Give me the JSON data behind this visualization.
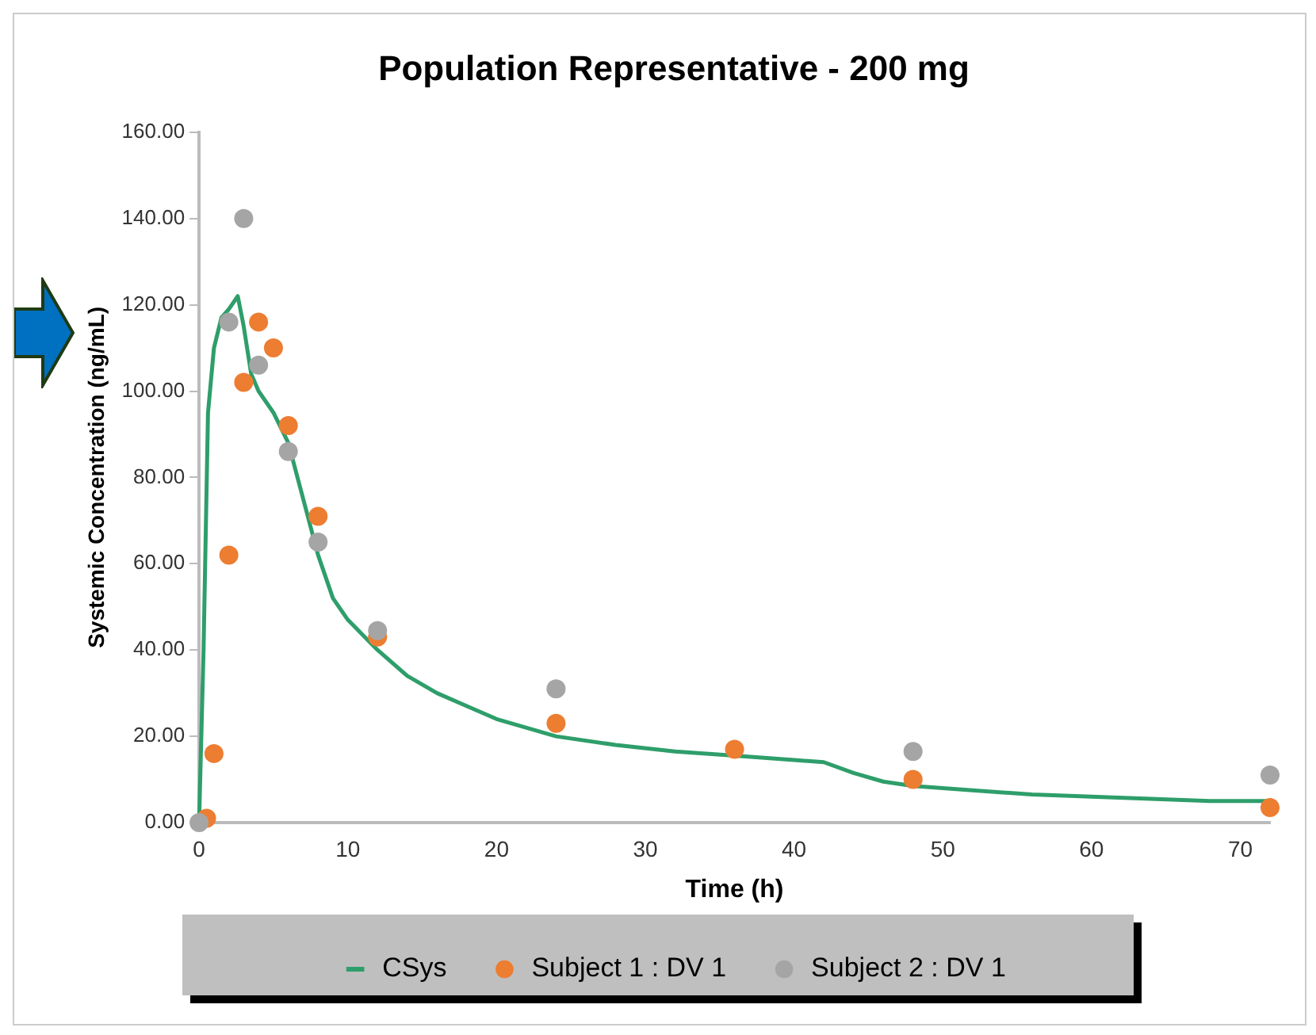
{
  "chart_data": {
    "type": "line",
    "title": "Population Representative - 200 mg",
    "xlabel": "Time (h)",
    "ylabel": "Systemic Concentration (ng/mL)",
    "xlim": [
      0,
      72
    ],
    "xticks": [
      0,
      10,
      20,
      30,
      40,
      50,
      60,
      70
    ],
    "ylim": [
      0,
      160
    ],
    "yticks": [
      {
        "value": 0,
        "label": "0.00"
      },
      {
        "value": 20,
        "label": "20.00"
      },
      {
        "value": 40,
        "label": "40.00"
      },
      {
        "value": 60,
        "label": "60.00"
      },
      {
        "value": 80,
        "label": "80.00"
      },
      {
        "value": 100,
        "label": "100.00"
      },
      {
        "value": 120,
        "label": "120.00"
      },
      {
        "value": 140,
        "label": "140.00"
      },
      {
        "value": 160,
        "label": "160.00"
      }
    ],
    "grid": false,
    "legend": "bottom",
    "series": [
      {
        "name": "CSys",
        "color": "#2e9e6a",
        "marker": "none",
        "line_style": "solid",
        "x": [
          0,
          0.3,
          0.6,
          1,
          1.5,
          2,
          2.6,
          3,
          3.5,
          4,
          5,
          6,
          7,
          8,
          9,
          10,
          12,
          14,
          16,
          18,
          20,
          24,
          28,
          32,
          36,
          40,
          42,
          44,
          46,
          48,
          52,
          56,
          60,
          64,
          68,
          72
        ],
        "values": [
          0,
          40,
          95,
          110,
          117,
          119,
          122,
          115,
          104,
          100,
          95,
          88,
          75,
          62,
          52,
          47,
          40,
          34,
          30,
          27,
          24,
          20,
          18,
          16.5,
          15.5,
          14.5,
          14,
          11.5,
          9.5,
          8.5,
          7.5,
          6.5,
          6,
          5.5,
          5,
          5
        ]
      },
      {
        "name": "Subject 1 : DV 1",
        "type": "scatter",
        "color": "#ed7d31",
        "marker": "circle",
        "x": [
          0.5,
          1,
          2,
          3,
          4,
          5,
          6,
          8,
          12,
          24,
          36,
          48,
          72
        ],
        "values": [
          1,
          16,
          62,
          102,
          116,
          110,
          92,
          71,
          43,
          23,
          17,
          10,
          3.5
        ]
      },
      {
        "name": "Subject 2 : DV 1",
        "type": "scatter",
        "color": "#a5a5a5",
        "marker": "circle",
        "x": [
          0,
          2,
          3,
          4,
          6,
          8,
          12,
          24,
          48,
          72
        ],
        "values": [
          0,
          116,
          140,
          106,
          86,
          65,
          44.5,
          31,
          16.5,
          11
        ]
      }
    ]
  }
}
